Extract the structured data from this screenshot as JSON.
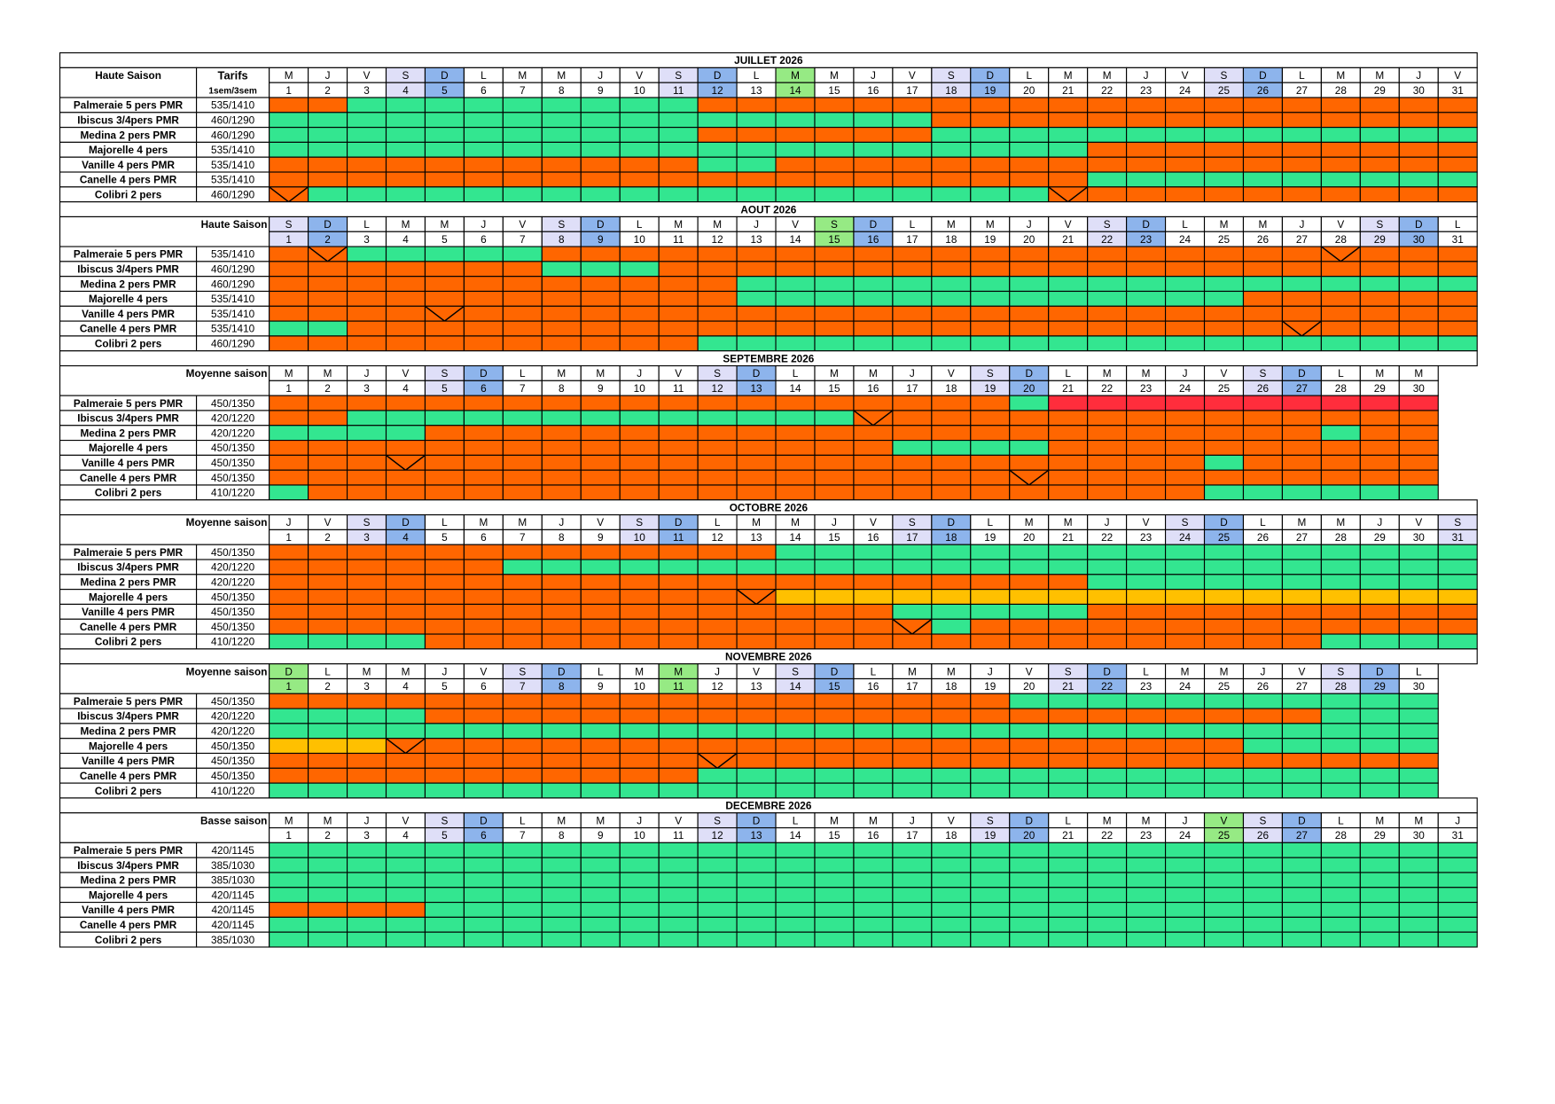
{
  "colors": {
    "o": "#ff6600",
    "g": "#33e690",
    "r": "#ff2d3c",
    "y": "#ffc000",
    "v": "#ff6600"
  },
  "header_colors": {
    "S": "#dfdff8",
    "D": "#8db4ec",
    "holiday": "#96ea84"
  },
  "months": [
    {
      "title": "JUILLET 2026",
      "season": "Haute Saison",
      "tarif_header": "Tarifs",
      "tarif_sub": "1sem/3sem",
      "days": [
        "M",
        "J",
        "V",
        "S",
        "D",
        "L",
        "M",
        "M",
        "J",
        "V",
        "S",
        "D",
        "L",
        "M",
        "M",
        "J",
        "V",
        "S",
        "D",
        "L",
        "M",
        "M",
        "J",
        "V",
        "S",
        "D",
        "L",
        "M",
        "M",
        "J",
        "V"
      ],
      "dates": [
        1,
        2,
        3,
        4,
        5,
        6,
        7,
        8,
        9,
        10,
        11,
        12,
        13,
        14,
        15,
        16,
        17,
        18,
        19,
        20,
        21,
        22,
        23,
        24,
        25,
        26,
        27,
        28,
        29,
        30,
        31
      ],
      "holidays": [
        14
      ],
      "rows": [
        {
          "name": "Palmeraie 5 pers PMR",
          "tarif": "535/1410",
          "runs": [
            [
              "o",
              2
            ],
            [
              "g",
              9
            ],
            [
              "o",
              20
            ]
          ]
        },
        {
          "name": "Ibiscus 3/4pers PMR",
          "tarif": "460/1290",
          "runs": [
            [
              "g",
              17
            ],
            [
              "o",
              14
            ]
          ]
        },
        {
          "name": "Medina 2 pers PMR",
          "tarif": "460/1290",
          "runs": [
            [
              "g",
              11
            ],
            [
              "o",
              6
            ],
            [
              "g",
              14
            ]
          ]
        },
        {
          "name": "Majorelle 4 pers",
          "tarif": "535/1410",
          "runs": [
            [
              "g",
              21
            ],
            [
              "o",
              10
            ]
          ]
        },
        {
          "name": "Vanille 4 pers PMR",
          "tarif": "535/1410",
          "runs": [
            [
              "o",
              11
            ],
            [
              "g",
              2
            ],
            [
              "o",
              18
            ]
          ]
        },
        {
          "name": "Canelle 4 pers PMR",
          "tarif": "535/1410",
          "runs": [
            [
              "o",
              21
            ],
            [
              "g",
              10
            ]
          ]
        },
        {
          "name": "Colibri 2 pers",
          "tarif": "460/1290",
          "runs": [
            [
              "v",
              1
            ],
            [
              "g",
              19
            ],
            [
              "v",
              1
            ],
            [
              "o",
              10
            ]
          ]
        }
      ]
    },
    {
      "title": "AOUT 2026",
      "season": "Haute Saison",
      "days": [
        "S",
        "D",
        "L",
        "M",
        "M",
        "J",
        "V",
        "S",
        "D",
        "L",
        "M",
        "M",
        "J",
        "V",
        "S",
        "D",
        "L",
        "M",
        "M",
        "J",
        "V",
        "S",
        "D",
        "L",
        "M",
        "M",
        "J",
        "V",
        "S",
        "D",
        "L"
      ],
      "dates": [
        1,
        2,
        3,
        4,
        5,
        6,
        7,
        8,
        9,
        10,
        11,
        12,
        13,
        14,
        15,
        16,
        17,
        18,
        19,
        20,
        21,
        22,
        23,
        24,
        25,
        26,
        27,
        28,
        29,
        30,
        31
      ],
      "holidays": [
        15
      ],
      "rows": [
        {
          "name": "Palmeraie 5 pers PMR",
          "tarif": "535/1410",
          "runs": [
            [
              "o",
              1
            ],
            [
              "v",
              1
            ],
            [
              "g",
              5
            ],
            [
              "o",
              20
            ],
            [
              "v",
              1
            ],
            [
              "o",
              3
            ]
          ]
        },
        {
          "name": "Ibiscus 3/4pers PMR",
          "tarif": "460/1290",
          "runs": [
            [
              "o",
              7
            ],
            [
              "g",
              3
            ],
            [
              "o",
              21
            ]
          ]
        },
        {
          "name": "Medina 2 pers PMR",
          "tarif": "460/1290",
          "runs": [
            [
              "o",
              12
            ],
            [
              "g",
              19
            ]
          ]
        },
        {
          "name": "Majorelle 4 pers",
          "tarif": "535/1410",
          "runs": [
            [
              "o",
              12
            ],
            [
              "g",
              13
            ],
            [
              "o",
              6
            ]
          ]
        },
        {
          "name": "Vanille 4 pers PMR",
          "tarif": "535/1410",
          "runs": [
            [
              "o",
              4
            ],
            [
              "v",
              1
            ],
            [
              "o",
              26
            ]
          ]
        },
        {
          "name": "Canelle 4 pers PMR",
          "tarif": "535/1410",
          "runs": [
            [
              "g",
              2
            ],
            [
              "o",
              24
            ],
            [
              "v",
              1
            ],
            [
              "o",
              4
            ]
          ]
        },
        {
          "name": "Colibri 2 pers",
          "tarif": "460/1290",
          "runs": [
            [
              "o",
              11
            ],
            [
              "g",
              20
            ]
          ]
        }
      ]
    },
    {
      "title": "SEPTEMBRE 2026",
      "season": "Moyenne saison",
      "days": [
        "M",
        "M",
        "J",
        "V",
        "S",
        "D",
        "L",
        "M",
        "M",
        "J",
        "V",
        "S",
        "D",
        "L",
        "M",
        "M",
        "J",
        "V",
        "S",
        "D",
        "L",
        "M",
        "M",
        "J",
        "V",
        "S",
        "D",
        "L",
        "M",
        "M"
      ],
      "dates": [
        1,
        2,
        3,
        4,
        5,
        6,
        7,
        8,
        9,
        10,
        11,
        12,
        13,
        14,
        15,
        16,
        17,
        18,
        19,
        20,
        21,
        22,
        23,
        24,
        25,
        26,
        27,
        28,
        29,
        30
      ],
      "holidays": [],
      "rows": [
        {
          "name": "Palmeraie 5 pers PMR",
          "tarif": "450/1350",
          "runs": [
            [
              "o",
              19
            ],
            [
              "g",
              1
            ],
            [
              "r",
              10
            ]
          ]
        },
        {
          "name": "Ibiscus 3/4pers PMR",
          "tarif": "420/1220",
          "runs": [
            [
              "o",
              2
            ],
            [
              "g",
              13
            ],
            [
              "v",
              1
            ],
            [
              "o",
              14
            ]
          ]
        },
        {
          "name": "Medina 2 pers PMR",
          "tarif": "420/1220",
          "runs": [
            [
              "g",
              4
            ],
            [
              "o",
              23
            ],
            [
              "g",
              1
            ],
            [
              "o",
              2
            ]
          ]
        },
        {
          "name": "Majorelle 4 pers",
          "tarif": "450/1350",
          "runs": [
            [
              "o",
              16
            ],
            [
              "g",
              4
            ],
            [
              "o",
              10
            ]
          ]
        },
        {
          "name": "Vanille 4 pers PMR",
          "tarif": "450/1350",
          "runs": [
            [
              "o",
              3
            ],
            [
              "v",
              1
            ],
            [
              "o",
              20
            ],
            [
              "g",
              1
            ],
            [
              "o",
              5
            ]
          ]
        },
        {
          "name": "Canelle 4 pers PMR",
          "tarif": "450/1350",
          "runs": [
            [
              "o",
              19
            ],
            [
              "v",
              1
            ],
            [
              "o",
              10
            ]
          ]
        },
        {
          "name": "Colibri 2 pers",
          "tarif": "410/1220",
          "runs": [
            [
              "g",
              1
            ],
            [
              "o",
              23
            ],
            [
              "g",
              6
            ]
          ]
        }
      ]
    },
    {
      "title": "OCTOBRE 2026",
      "season": "Moyenne saison",
      "days": [
        "J",
        "V",
        "S",
        "D",
        "L",
        "M",
        "M",
        "J",
        "V",
        "S",
        "D",
        "L",
        "M",
        "M",
        "J",
        "V",
        "S",
        "D",
        "L",
        "M",
        "M",
        "J",
        "V",
        "S",
        "D",
        "L",
        "M",
        "M",
        "J",
        "V",
        "S"
      ],
      "dates": [
        1,
        2,
        3,
        4,
        5,
        6,
        7,
        8,
        9,
        10,
        11,
        12,
        13,
        14,
        15,
        16,
        17,
        18,
        19,
        20,
        21,
        22,
        23,
        24,
        25,
        26,
        27,
        28,
        29,
        30,
        31
      ],
      "holidays": [],
      "rows": [
        {
          "name": "Palmeraie 5 pers PMR",
          "tarif": "450/1350",
          "runs": [
            [
              "o",
              13
            ],
            [
              "g",
              18
            ]
          ]
        },
        {
          "name": "Ibiscus 3/4pers PMR",
          "tarif": "420/1220",
          "runs": [
            [
              "o",
              6
            ],
            [
              "g",
              25
            ]
          ]
        },
        {
          "name": "Medina 2 pers PMR",
          "tarif": "420/1220",
          "runs": [
            [
              "o",
              21
            ],
            [
              "g",
              10
            ]
          ]
        },
        {
          "name": "Majorelle 4 pers",
          "tarif": "450/1350",
          "runs": [
            [
              "o",
              12
            ],
            [
              "v",
              1
            ],
            [
              "y",
              18
            ]
          ]
        },
        {
          "name": "Vanille 4 pers PMR",
          "tarif": "450/1350",
          "runs": [
            [
              "o",
              16
            ],
            [
              "g",
              5
            ],
            [
              "o",
              10
            ]
          ]
        },
        {
          "name": "Canelle 4 pers PMR",
          "tarif": "450/1350",
          "runs": [
            [
              "o",
              16
            ],
            [
              "v",
              1
            ],
            [
              "g",
              1
            ],
            [
              "o",
              13
            ]
          ]
        },
        {
          "name": "Colibri 2 pers",
          "tarif": "410/1220",
          "runs": [
            [
              "g",
              4
            ],
            [
              "o",
              23
            ],
            [
              "g",
              4
            ]
          ]
        }
      ]
    },
    {
      "title": "NOVEMBRE 2026",
      "season": "Moyenne saison",
      "days": [
        "D",
        "L",
        "M",
        "M",
        "J",
        "V",
        "S",
        "D",
        "L",
        "M",
        "M",
        "J",
        "V",
        "S",
        "D",
        "L",
        "M",
        "M",
        "J",
        "V",
        "S",
        "D",
        "L",
        "M",
        "M",
        "J",
        "V",
        "S",
        "D",
        "L"
      ],
      "dates": [
        1,
        2,
        3,
        4,
        5,
        6,
        7,
        8,
        9,
        10,
        11,
        12,
        13,
        14,
        15,
        16,
        17,
        18,
        19,
        20,
        21,
        22,
        23,
        24,
        25,
        26,
        27,
        28,
        29,
        30
      ],
      "holidays": [
        1,
        11
      ],
      "rows": [
        {
          "name": "Palmeraie 5 pers PMR",
          "tarif": "450/1350",
          "runs": [
            [
              "o",
              19
            ],
            [
              "g",
              11
            ]
          ]
        },
        {
          "name": "Ibiscus 3/4pers PMR",
          "tarif": "420/1220",
          "runs": [
            [
              "g",
              4
            ],
            [
              "o",
              23
            ],
            [
              "g",
              3
            ]
          ]
        },
        {
          "name": "Medina 2 pers PMR",
          "tarif": "420/1220",
          "runs": [
            [
              "g",
              30
            ]
          ]
        },
        {
          "name": "Majorelle 4 pers",
          "tarif": "450/1350",
          "runs": [
            [
              "y",
              3
            ],
            [
              "v",
              1
            ],
            [
              "o",
              21
            ],
            [
              "g",
              5
            ]
          ]
        },
        {
          "name": "Vanille 4 pers PMR",
          "tarif": "450/1350",
          "runs": [
            [
              "o",
              11
            ],
            [
              "v",
              1
            ],
            [
              "o",
              18
            ]
          ]
        },
        {
          "name": "Canelle 4 pers PMR",
          "tarif": "450/1350",
          "runs": [
            [
              "o",
              11
            ],
            [
              "g",
              19
            ]
          ]
        },
        {
          "name": "Colibri 2 pers",
          "tarif": "410/1220",
          "runs": [
            [
              "g",
              30
            ]
          ]
        }
      ]
    },
    {
      "title": "DECEMBRE 2026",
      "season": "Basse saison",
      "days": [
        "M",
        "M",
        "J",
        "V",
        "S",
        "D",
        "L",
        "M",
        "M",
        "J",
        "V",
        "S",
        "D",
        "L",
        "M",
        "M",
        "J",
        "V",
        "S",
        "D",
        "L",
        "M",
        "M",
        "J",
        "V",
        "S",
        "D",
        "L",
        "M",
        "M",
        "J"
      ],
      "dates": [
        1,
        2,
        3,
        4,
        5,
        6,
        7,
        8,
        9,
        10,
        11,
        12,
        13,
        14,
        15,
        16,
        17,
        18,
        19,
        20,
        21,
        22,
        23,
        24,
        25,
        26,
        27,
        28,
        29,
        30,
        31
      ],
      "holidays": [
        25
      ],
      "rows": [
        {
          "name": "Palmeraie 5 pers PMR",
          "tarif": "420/1145",
          "runs": [
            [
              "g",
              31
            ]
          ]
        },
        {
          "name": "Ibiscus 3/4pers PMR",
          "tarif": "385/1030",
          "runs": [
            [
              "g",
              31
            ]
          ]
        },
        {
          "name": "Medina 2 pers PMR",
          "tarif": "385/1030",
          "runs": [
            [
              "g",
              31
            ]
          ]
        },
        {
          "name": "Majorelle 4 pers",
          "tarif": "420/1145",
          "runs": [
            [
              "g",
              31
            ]
          ]
        },
        {
          "name": "Vanille 4 pers PMR",
          "tarif": "420/1145",
          "runs": [
            [
              "o",
              4
            ],
            [
              "g",
              27
            ]
          ]
        },
        {
          "name": "Canelle 4 pers PMR",
          "tarif": "420/1145",
          "runs": [
            [
              "g",
              31
            ]
          ]
        },
        {
          "name": "Colibri 2 pers",
          "tarif": "385/1030",
          "runs": [
            [
              "g",
              31
            ]
          ]
        }
      ]
    }
  ]
}
